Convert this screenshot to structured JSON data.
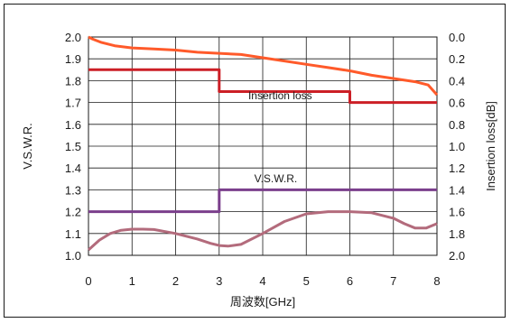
{
  "chart_data": {
    "type": "line",
    "xlabel": "周波数[GHz]",
    "ylabel_left": "V.S.W.R.",
    "ylabel_right": "Insertion loss[dB]",
    "x_ticks": [
      "0",
      "1",
      "2",
      "3",
      "4",
      "5",
      "6",
      "7",
      "8"
    ],
    "y_left_ticks": [
      "1.0",
      "1.1",
      "1.2",
      "1.3",
      "1.4",
      "1.5",
      "1.6",
      "1.7",
      "1.8",
      "1.9",
      "2.0"
    ],
    "y_right_ticks": [
      "2.0",
      "1.8",
      "1.6",
      "1.4",
      "1.2",
      "1.0",
      "0.8",
      "0.6",
      "0.4",
      "0.2",
      "0.0"
    ],
    "xlim": [
      0,
      8
    ],
    "ylim_left": [
      1.0,
      2.0
    ],
    "ylim_right": [
      2.0,
      0.0
    ],
    "grid": true,
    "annotations": [
      {
        "text": "Insertion loss",
        "x": 4.4,
        "y_left": 1.715
      },
      {
        "text": "V.S.W.R.",
        "x": 4.3,
        "y_left": 1.335
      }
    ],
    "series": [
      {
        "axis": "right",
        "color": "#ff5a2a",
        "x": [
          0,
          0.1,
          0.3,
          0.6,
          1,
          1.5,
          2,
          2.5,
          3,
          3.5,
          4,
          4.5,
          5,
          5.5,
          6,
          6.5,
          7,
          7.5,
          7.8,
          8
        ],
        "values": [
          0.0,
          0.02,
          0.05,
          0.08,
          0.1,
          0.11,
          0.12,
          0.14,
          0.15,
          0.16,
          0.19,
          0.22,
          0.25,
          0.28,
          0.31,
          0.35,
          0.38,
          0.41,
          0.44,
          0.53
        ]
      },
      {
        "axis": "right",
        "color": "#cc1f26",
        "x": [
          0,
          3,
          3,
          6,
          6,
          8
        ],
        "values": [
          0.3,
          0.3,
          0.5,
          0.5,
          0.6,
          0.6
        ]
      },
      {
        "axis": "left",
        "color": "#7b3f8c",
        "x": [
          0,
          3,
          3,
          8
        ],
        "values": [
          1.2,
          1.2,
          1.3,
          1.3
        ]
      },
      {
        "axis": "left",
        "color": "#b36b7c",
        "x": [
          0,
          0.25,
          0.5,
          0.75,
          1.0,
          1.25,
          1.5,
          2.0,
          2.5,
          2.8,
          3.0,
          3.2,
          3.5,
          4.0,
          4.5,
          5.0,
          5.5,
          6.0,
          6.5,
          7.0,
          7.25,
          7.5,
          7.75,
          8.0
        ],
        "values": [
          1.025,
          1.07,
          1.1,
          1.115,
          1.12,
          1.12,
          1.118,
          1.1,
          1.075,
          1.055,
          1.045,
          1.042,
          1.05,
          1.1,
          1.155,
          1.19,
          1.2,
          1.2,
          1.195,
          1.17,
          1.145,
          1.125,
          1.125,
          1.145
        ]
      }
    ]
  }
}
